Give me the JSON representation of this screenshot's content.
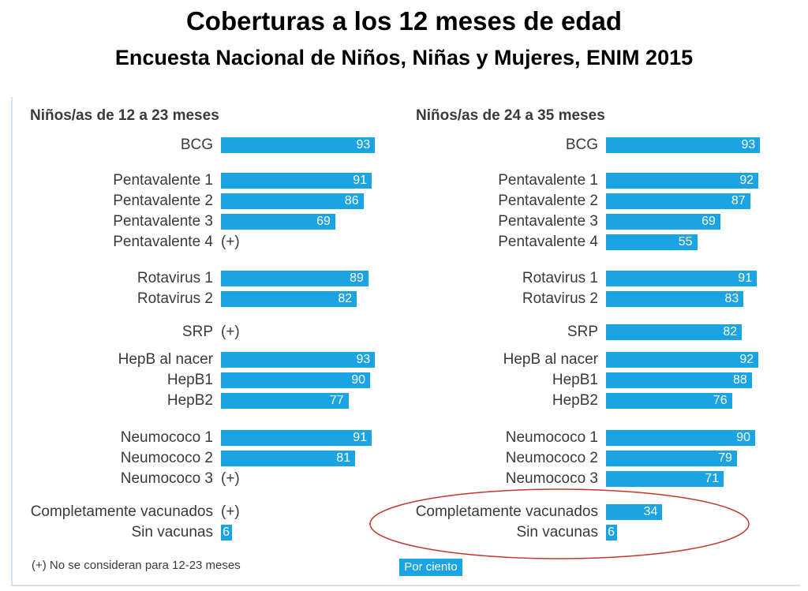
{
  "title": "Coberturas  a los 12 meses de edad",
  "subtitle": "Encuesta Nacional de Niños, Niñas y Mujeres, ENIM 2015",
  "footnote": "(+) No se consideran para 12-23 meses",
  "unit": "Por ciento",
  "colors": {
    "bar": "#1aa4e4",
    "highlight_ellipse": "#c0392b"
  },
  "chart_data": [
    {
      "type": "bar",
      "title": "Niños/as de 12 a 23 meses",
      "xlim": [
        0,
        100
      ],
      "categories": [
        "BCG",
        "Pentavalente 1",
        "Pentavalente 2",
        "Pentavalente 3",
        "Pentavalente 4",
        "Rotavirus 1",
        "Rotavirus 2",
        "SRP",
        "HepB al nacer",
        "HepB1",
        "HepB2",
        "Neumococo 1",
        "Neumococo 2",
        "Neumococo 3",
        "Completamente vacunados",
        "Sin vacunas"
      ],
      "values": [
        93,
        91,
        86,
        69,
        null,
        89,
        82,
        null,
        93,
        90,
        77,
        91,
        81,
        null,
        null,
        6
      ],
      "not_considered_marker": "(+)"
    },
    {
      "type": "bar",
      "title": "Niños/as de 24 a 35 meses",
      "xlim": [
        0,
        100
      ],
      "categories": [
        "BCG",
        "Pentavalente 1",
        "Pentavalente 2",
        "Pentavalente 3",
        "Pentavalente 4",
        "Rotavirus 1",
        "Rotavirus 2",
        "SRP",
        "HepB al nacer",
        "HepB1",
        "HepB2",
        "Neumococo 1",
        "Neumococo 2",
        "Neumococo 3",
        "Completamente vacunados",
        "Sin vacunas"
      ],
      "values": [
        93,
        92,
        87,
        69,
        55,
        91,
        83,
        82,
        92,
        88,
        76,
        90,
        79,
        71,
        34,
        6
      ],
      "highlighted_categories": [
        "Completamente vacunados",
        "Sin vacunas"
      ]
    }
  ]
}
